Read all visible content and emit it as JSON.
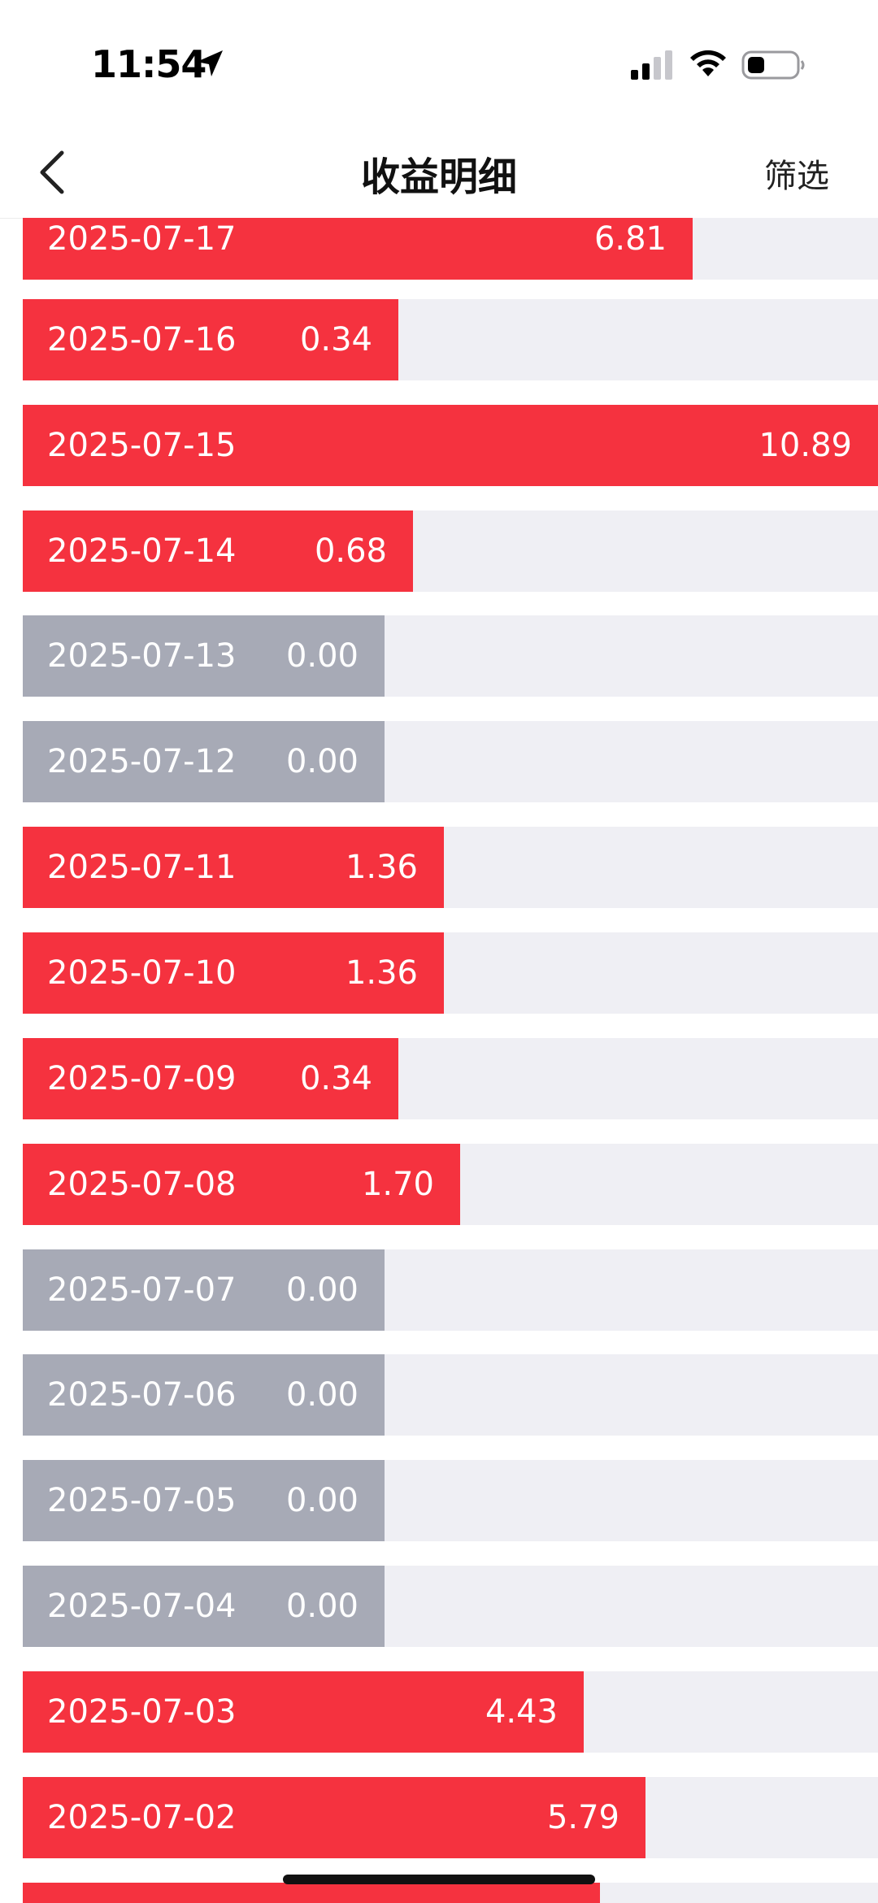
{
  "status_bar": {
    "time": "11:54",
    "icons": [
      "location-arrow-icon",
      "cellular-signal-icon",
      "wifi-icon",
      "battery-icon"
    ]
  },
  "nav": {
    "title": "收益明细",
    "filter_label": "筛选",
    "back_icon": "chevron-left-icon"
  },
  "colors": {
    "positive_bar": "#f5323f",
    "zero_bar": "#a7aab6",
    "track": "#efeff4"
  },
  "earnings": [
    {
      "date": "2025-07-17",
      "value": "6.81"
    },
    {
      "date": "2025-07-16",
      "value": "0.34"
    },
    {
      "date": "2025-07-15",
      "value": "10.89"
    },
    {
      "date": "2025-07-14",
      "value": "0.68"
    },
    {
      "date": "2025-07-13",
      "value": "0.00"
    },
    {
      "date": "2025-07-12",
      "value": "0.00"
    },
    {
      "date": "2025-07-11",
      "value": "1.36"
    },
    {
      "date": "2025-07-10",
      "value": "1.36"
    },
    {
      "date": "2025-07-09",
      "value": "0.34"
    },
    {
      "date": "2025-07-08",
      "value": "1.70"
    },
    {
      "date": "2025-07-07",
      "value": "0.00"
    },
    {
      "date": "2025-07-06",
      "value": "0.00"
    },
    {
      "date": "2025-07-05",
      "value": "0.00"
    },
    {
      "date": "2025-07-04",
      "value": "0.00"
    },
    {
      "date": "2025-07-03",
      "value": "4.43"
    },
    {
      "date": "2025-07-02",
      "value": "5.79"
    },
    {
      "date": "",
      "value": ""
    }
  ]
}
